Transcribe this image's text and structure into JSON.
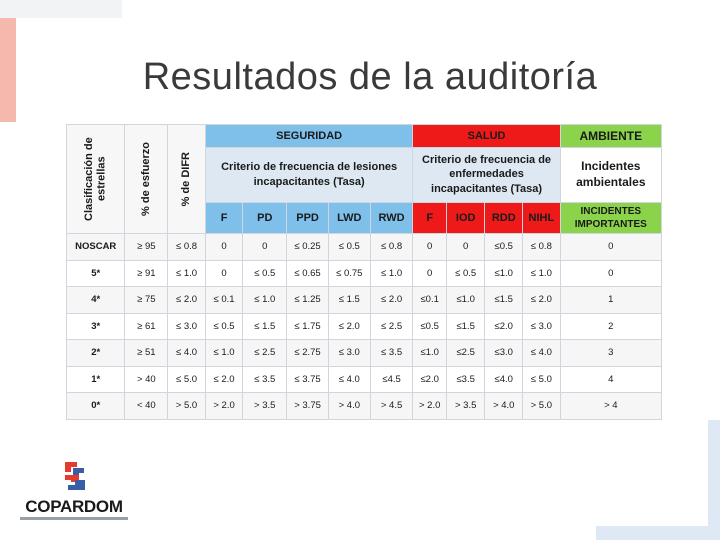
{
  "title": "Resultados de la auditoría",
  "colors": {
    "seguridad": "#7ec0ea",
    "salud": "#ee1a1a",
    "ambiente": "#8bd34a",
    "criterio": "#dde8f3"
  },
  "table": {
    "vertical_headers": [
      "Clasificación de estrellas",
      "% de esfuerzo",
      "% de DIFR"
    ],
    "groups": {
      "seguridad": "SEGURIDAD",
      "salud": "SALUD",
      "ambiente": "AMBIENTE"
    },
    "criteria": {
      "seguridad": "Criterio de frecuencia de lesiones incapacitantes (Tasa)",
      "salud": "Criterio de frecuencia de enfermedades incapacitantes (Tasa)",
      "ambiente": "Incidentes ambientales"
    },
    "seguridad_cols": [
      "F",
      "PD",
      "PPD",
      "LWD",
      "RWD"
    ],
    "salud_cols": [
      "F",
      "IOD",
      "RDD",
      "NIHL"
    ],
    "ambiente_col": "INCIDENTES IMPORTANTES",
    "rows": [
      [
        "NOSCAR",
        "≥ 95",
        "≤ 0.8",
        "0",
        "0",
        "≤ 0.25",
        "≤ 0.5",
        "≤ 0.8",
        "0",
        "0",
        "≤0.5",
        "≤ 0.8",
        "0"
      ],
      [
        "5*",
        "≥ 91",
        "≤ 1.0",
        "0",
        "≤ 0.5",
        "≤ 0.65",
        "≤ 0.75",
        "≤ 1.0",
        "0",
        "≤ 0.5",
        "≤1.0",
        "≤ 1.0",
        "0"
      ],
      [
        "4*",
        "≥ 75",
        "≤ 2.0",
        "≤ 0.1",
        "≤ 1.0",
        "≤ 1.25",
        "≤ 1.5",
        "≤ 2.0",
        "≤0.1",
        "≤1.0",
        "≤1.5",
        "≤ 2.0",
        "1"
      ],
      [
        "3*",
        "≥ 61",
        "≤ 3.0",
        "≤ 0.5",
        "≤ 1.5",
        "≤ 1.75",
        "≤ 2.0",
        "≤ 2.5",
        "≤0.5",
        "≤1.5",
        "≤2.0",
        "≤ 3.0",
        "2"
      ],
      [
        "2*",
        "≥ 51",
        "≤ 4.0",
        "≤ 1.0",
        "≤ 2.5",
        "≤ 2.75",
        "≤ 3.0",
        "≤ 3.5",
        "≤1.0",
        "≤2.5",
        "≤3.0",
        "≤ 4.0",
        "3"
      ],
      [
        "1*",
        "> 40",
        "≤ 5.0",
        "≤ 2.0",
        "≤ 3.5",
        "≤ 3.75",
        "≤ 4.0",
        "≤4.5",
        "≤2.0",
        "≤3.5",
        "≤4.0",
        "≤ 5.0",
        "4"
      ],
      [
        "0*",
        "< 40",
        "> 5.0",
        "> 2.0",
        "> 3.5",
        "> 3.75",
        "> 4.0",
        "> 4.5",
        "> 2.0",
        "> 3.5",
        "> 4.0",
        "> 5.0",
        "> 4"
      ]
    ]
  },
  "logo": {
    "name": "COPARDOM",
    "icon": "copardom-logo-icon"
  }
}
